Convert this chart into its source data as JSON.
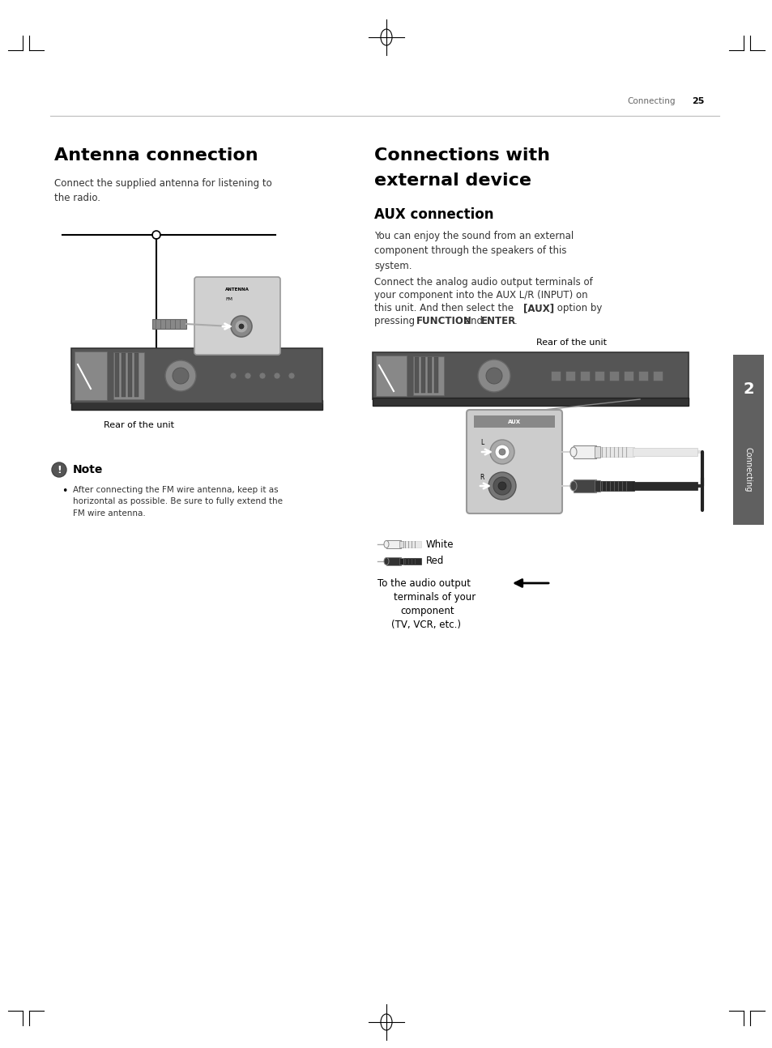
{
  "page_num": "25",
  "header_text": "Connecting",
  "section1_title": "Antenna connection",
  "section1_body": "Connect the supplied antenna for listening to\nthe radio.",
  "note_title": "Note",
  "note_body": "After connecting the FM wire antenna, keep it as\nhorizontal as possible. Be sure to fully extend the\nFM wire antenna.",
  "section2_title1": "Connections with",
  "section2_title2": "external device",
  "aux_title": "AUX connection",
  "aux_body1": "You can enjoy the sound from an external\ncomponent through the speakers of this\nsystem.",
  "aux_body2_pre": "Connect the analog audio output terminals of\nyour component into the AUX L/R (INPUT) on\nthis unit. And then select the ",
  "aux_body2_bracket": "[AUX]",
  "aux_body2_mid": " option by\npressing ",
  "aux_body2_function": "FUNCTION",
  "aux_body2_and": " and ",
  "aux_body2_enter": "ENTER",
  "aux_body2_end": ".",
  "rear_label_left": "Rear of the unit",
  "rear_label_right": "Rear of the unit",
  "white_label": "White",
  "red_label": "Red",
  "audio_line1": "To the audio output",
  "audio_line2": "terminals of your",
  "audio_line3": "component",
  "audio_line4": "(TV, VCR, etc.)",
  "sidebar_text": "Connecting",
  "sidebar_num": "2",
  "bg_color": "#ffffff",
  "sidebar_bg": "#606060",
  "header_color": "#666666",
  "title_color": "#000000",
  "body_color": "#333333",
  "divider_color": "#bbbbbb",
  "unit_dark": "#555555",
  "unit_mid": "#777777",
  "unit_light": "#aaaaaa",
  "aux_panel_bg": "#cccccc",
  "note_icon_color": "#cc2200",
  "cable_black": "#222222",
  "cable_white_color": "#f0f0f0",
  "cable_dark_color": "#444444"
}
